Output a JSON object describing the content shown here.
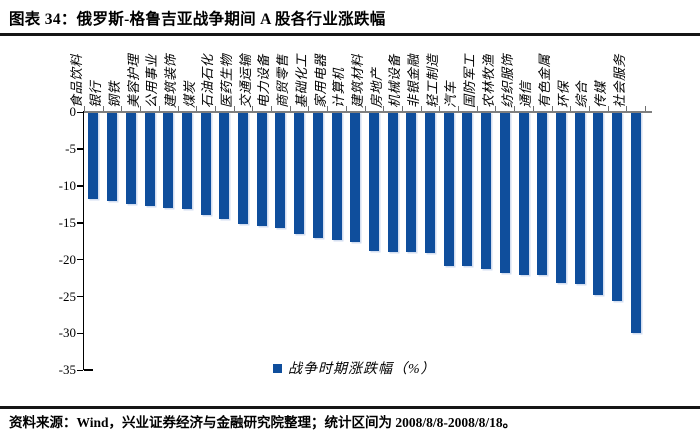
{
  "header": {
    "title": "图表 34：俄罗斯-格鲁吉亚战争期间 A 股各行业涨跌幅"
  },
  "chart_data": {
    "type": "bar",
    "title": "图表 34：俄罗斯-格鲁吉亚战争期间 A 股各行业涨跌幅",
    "categories": [
      "食品饮料",
      "银行",
      "钢铁",
      "美容护理",
      "公用事业",
      "建筑装饰",
      "煤炭",
      "石油石化",
      "医药生物",
      "交通运输",
      "电力设备",
      "商贸零售",
      "基础化工",
      "家用电器",
      "计算机",
      "建筑材料",
      "房地产",
      "机械设备",
      "非银金融",
      "轻工制造",
      "汽车",
      "国防军工",
      "农林牧渔",
      "纺织服饰",
      "通信",
      "有色金属",
      "环保",
      "综合",
      "传媒",
      "社会服务"
    ],
    "values": [
      -11.8,
      -12.1,
      -12.4,
      -12.7,
      -13.0,
      -13.1,
      -13.9,
      -14.5,
      -15.2,
      -15.5,
      -15.7,
      -16.5,
      -17.0,
      -17.3,
      -17.6,
      -18.8,
      -19.0,
      -19.0,
      -19.1,
      -20.8,
      -20.8,
      -21.3,
      -21.8,
      -22.1,
      -22.1,
      -23.2,
      -23.3,
      -24.8,
      -25.6,
      -30.0
    ],
    "ylim": [
      -35,
      0
    ],
    "yticks": [
      0,
      -5,
      -10,
      -15,
      -20,
      -25,
      -30,
      -35
    ],
    "xlabel": "",
    "ylabel": "",
    "grid": false,
    "legend_label": "战争时期涨跌幅（%）",
    "legend_position": "bottom-center",
    "bar_color": "#0F4E9C",
    "zero_axis_color": "#7f7f7f",
    "axis_color": "#000000"
  },
  "footer": {
    "source": "资料来源：Wind，兴业证券经济与金融研究院整理；统计区间为 2008/8/8-2008/8/18。"
  }
}
